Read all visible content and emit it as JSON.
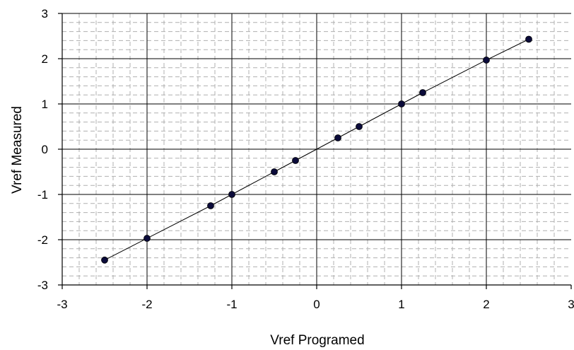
{
  "chart_data": {
    "type": "scatter",
    "title": "",
    "xlabel": "Vref Programed",
    "ylabel": "Vref Measured",
    "xlim": [
      -3,
      3
    ],
    "ylim": [
      -3,
      3
    ],
    "x_ticks": [
      "-3",
      "-2",
      "-1",
      "0",
      "1",
      "2",
      "3"
    ],
    "y_ticks": [
      "3",
      "2",
      "1",
      "0",
      "-1",
      "-2",
      "-3"
    ],
    "grid": true,
    "legend": "none",
    "series": [
      {
        "x": [
          -2.5,
          -2.0,
          -1.25,
          -1.0,
          -0.5,
          -0.25,
          0.25,
          0.5,
          1.0,
          1.25,
          2.0,
          2.5
        ],
        "y": [
          -2.45,
          -1.97,
          -1.25,
          -1.0,
          -0.5,
          -0.25,
          0.25,
          0.5,
          1.0,
          1.25,
          1.97,
          2.43
        ]
      }
    ],
    "trendline": {
      "x": [
        -2.5,
        2.5
      ],
      "y": [
        -2.45,
        2.45
      ]
    },
    "colors": {
      "marker": "#0b0b3a",
      "line": "#000000",
      "minor_grid": "#b0b0b0",
      "major_grid": "#000000"
    }
  }
}
